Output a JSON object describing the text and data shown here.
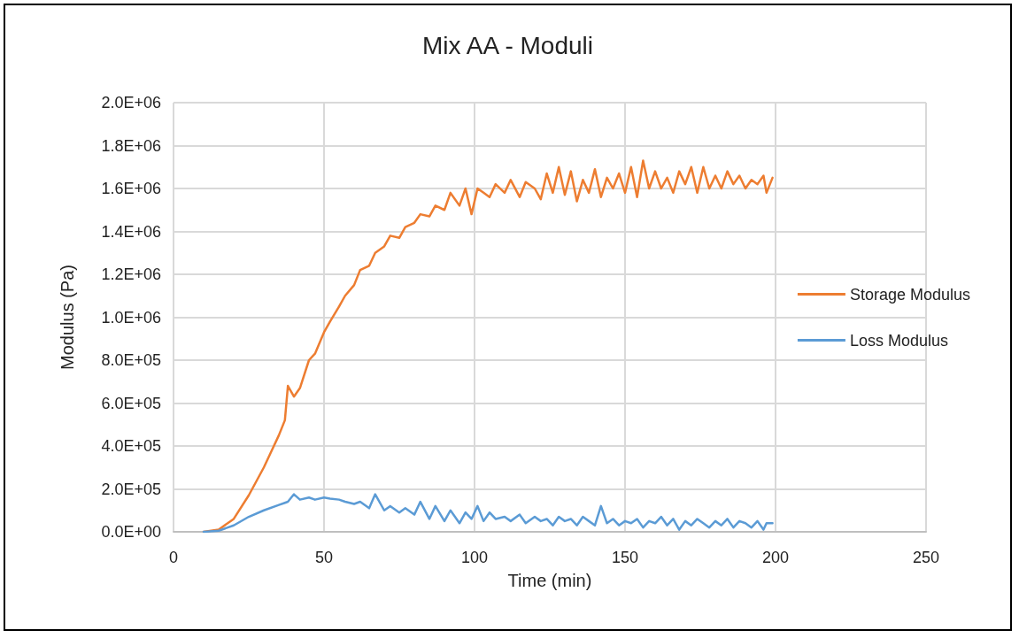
{
  "chart_data": {
    "type": "line",
    "title": "Mix AA - Moduli",
    "xlabel": "Time (min)",
    "ylabel": "Modulus (Pa)",
    "x": [
      10,
      15,
      20,
      25,
      30,
      35,
      37,
      38,
      40,
      42,
      45,
      47,
      50,
      52,
      55,
      57,
      60,
      62,
      65,
      67,
      70,
      72,
      75,
      77,
      80,
      82,
      85,
      87,
      90,
      92,
      95,
      97,
      99,
      101,
      103,
      105,
      107,
      110,
      112,
      115,
      117,
      120,
      122,
      124,
      126,
      128,
      130,
      132,
      134,
      136,
      138,
      140,
      142,
      144,
      146,
      148,
      150,
      152,
      154,
      156,
      158,
      160,
      162,
      164,
      166,
      168,
      170,
      172,
      174,
      176,
      178,
      180,
      182,
      184,
      186,
      188,
      190,
      192,
      194,
      196,
      197,
      199
    ],
    "series": [
      {
        "name": "Storage Modulus",
        "color": "#ed7d31",
        "values": [
          0,
          10000.0,
          60000.0,
          170000.0,
          300000.0,
          450000.0,
          520000.0,
          680000.0,
          630000.0,
          670000.0,
          800000.0,
          830000.0,
          930000.0,
          980000.0,
          1050000.0,
          1100000.0,
          1150000.0,
          1220000.0,
          1240000.0,
          1300000.0,
          1330000.0,
          1380000.0,
          1370000.0,
          1420000.0,
          1440000.0,
          1480000.0,
          1470000.0,
          1520000.0,
          1500000.0,
          1580000.0,
          1520000.0,
          1600000.0,
          1480000.0,
          1600000.0,
          1580000.0,
          1560000.0,
          1620000.0,
          1580000.0,
          1640000.0,
          1560000.0,
          1630000.0,
          1600000.0,
          1550000.0,
          1670000.0,
          1580000.0,
          1700000.0,
          1570000.0,
          1680000.0,
          1540000.0,
          1640000.0,
          1580000.0,
          1690000.0,
          1560000.0,
          1650000.0,
          1600000.0,
          1670000.0,
          1580000.0,
          1700000.0,
          1560000.0,
          1730000.0,
          1600000.0,
          1680000.0,
          1600000.0,
          1650000.0,
          1580000.0,
          1680000.0,
          1620000.0,
          1700000.0,
          1580000.0,
          1700000.0,
          1600000.0,
          1660000.0,
          1600000.0,
          1680000.0,
          1620000.0,
          1660000.0,
          1600000.0,
          1640000.0,
          1620000.0,
          1660000.0,
          1580000.0,
          1650000.0
        ]
      },
      {
        "name": "Loss Modulus",
        "color": "#5b9bd5",
        "values": [
          0,
          5000.0,
          30000.0,
          70000.0,
          100000.0,
          125000.0,
          135000.0,
          140000.0,
          175000.0,
          150000.0,
          160000.0,
          150000.0,
          160000.0,
          155000.0,
          150000.0,
          140000.0,
          130000.0,
          140000.0,
          110000.0,
          175000.0,
          100000.0,
          120000.0,
          90000.0,
          110000.0,
          80000.0,
          140000.0,
          60000.0,
          120000.0,
          50000.0,
          100000.0,
          40000.0,
          90000.0,
          60000.0,
          120000.0,
          50000.0,
          90000.0,
          60000.0,
          70000.0,
          50000.0,
          80000.0,
          40000.0,
          70000.0,
          50000.0,
          60000.0,
          30000.0,
          70000.0,
          50000.0,
          60000.0,
          30000.0,
          70000.0,
          50000.0,
          30000.0,
          120000.0,
          40000.0,
          60000.0,
          30000.0,
          50000.0,
          40000.0,
          60000.0,
          20000.0,
          50000.0,
          40000.0,
          70000.0,
          30000.0,
          60000.0,
          10000.0,
          50000.0,
          30000.0,
          60000.0,
          40000.0,
          20000.0,
          50000.0,
          30000.0,
          60000.0,
          20000.0,
          50000.0,
          40000.0,
          20000.0,
          50000.0,
          10000.0,
          40000.0,
          40000.0
        ]
      }
    ],
    "xlim": [
      0,
      250
    ],
    "xticks": [
      0,
      50,
      100,
      150,
      200,
      250
    ],
    "ylim": [
      0,
      2000000
    ],
    "yticks": [
      {
        "value": 0,
        "label": "0.0E+00"
      },
      {
        "value": 200000,
        "label": "2.0E+05"
      },
      {
        "value": 400000,
        "label": "4.0E+05"
      },
      {
        "value": 600000,
        "label": "6.0E+05"
      },
      {
        "value": 800000,
        "label": "8.0E+05"
      },
      {
        "value": 1000000,
        "label": "1.0E+06"
      },
      {
        "value": 1200000,
        "label": "1.2E+06"
      },
      {
        "value": 1400000,
        "label": "1.4E+06"
      },
      {
        "value": 1600000,
        "label": "1.6E+06"
      },
      {
        "value": 1800000,
        "label": "1.8E+06"
      },
      {
        "value": 2000000,
        "label": "2.0E+06"
      }
    ],
    "grid": true,
    "legend": "right",
    "marker": "none",
    "line_style": "solid"
  }
}
